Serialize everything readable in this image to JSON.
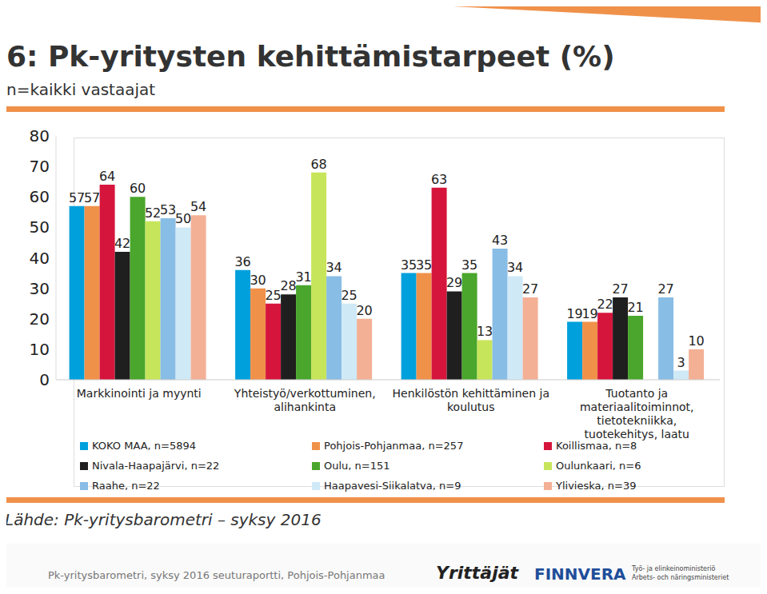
{
  "chart_data": {
    "type": "bar",
    "title": "6: Pk-yritysten kehittämistarpeet (%)",
    "subtitle": "n=kaikki vastaajat",
    "categories": [
      "Markkinointi ja myynti",
      "Yhteistyö/verkottuminen, alihankinta",
      "Henkilöstön kehittäminen ja koulutus",
      "Tuotanto ja materiaalitoiminnot, tietotekniikka, tuotekehitys, laatu"
    ],
    "series": [
      {
        "name": "KOKO MAA, n=5894",
        "color": "#00a0dc",
        "values": [
          57,
          36,
          35,
          19
        ]
      },
      {
        "name": "Pohjois-Pohjanmaa, n=257",
        "color": "#f0914a",
        "values": [
          57,
          30,
          35,
          19
        ]
      },
      {
        "name": "Koillismaa, n=8",
        "color": "#d6153c",
        "values": [
          64,
          25,
          63,
          22
        ]
      },
      {
        "name": "Nivala-Haapajärvi, n=22",
        "color": "#1f1f1f",
        "values": [
          42,
          28,
          29,
          27
        ]
      },
      {
        "name": "Oulu, n=151",
        "color": "#4aa62c",
        "values": [
          60,
          31,
          35,
          21
        ]
      },
      {
        "name": "Oulunkaari, n=6",
        "color": "#c7e55a",
        "values": [
          52,
          68,
          13,
          0
        ]
      },
      {
        "name": "Raahe, n=22",
        "color": "#88bde6",
        "values": [
          53,
          34,
          43,
          27
        ]
      },
      {
        "name": "Haapavesi-Siikalatva, n=9",
        "color": "#cfe9f7",
        "values": [
          50,
          25,
          34,
          3
        ]
      },
      {
        "name": "Ylivieska, n=39",
        "color": "#f3b095",
        "values": [
          54,
          20,
          27,
          10
        ]
      }
    ],
    "ylim": [
      0,
      80
    ],
    "yticks": [
      0,
      10,
      20,
      30,
      40,
      50,
      60,
      70,
      80
    ],
    "grid": false,
    "legend": "bottom",
    "data_labels": true
  },
  "source": "Lähde: Pk-yritysbarometri – syksy 2016",
  "footer": "Pk-yritysbarometri, syksy 2016 seuturaportti, Pohjois-Pohjanmaa",
  "logos": [
    "Yrittäjät",
    "FINNVERA",
    "Työ- ja elinkeinoministeriö",
    "Arbets- och näringsministeriet"
  ]
}
